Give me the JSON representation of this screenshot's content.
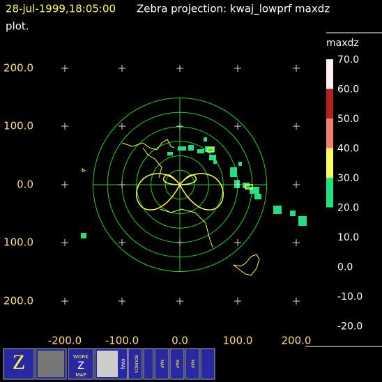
{
  "header": {
    "time": "28-jul-1999,18:05:00",
    "title": "Zebra projection: kwaj_lowprf maxdz",
    "title_cont": "plot."
  },
  "axes": {
    "x_labels": [
      "-200.0",
      "-100.0",
      "0.0",
      "100.0",
      "200.0"
    ],
    "y_labels": [
      "200.0",
      "100.0",
      "0.0",
      "100.0",
      "200.0"
    ]
  },
  "colorbar": {
    "title": "maxdz",
    "labels": [
      "70.0",
      "60.0",
      "50.0",
      "40.0",
      "30.0",
      "20.0",
      "10.0",
      "0.0",
      "-10.0",
      "-20.0"
    ],
    "colors": [
      "#fff0f0",
      "#b22222",
      "#f08070",
      "#ffff60",
      "#20e080"
    ]
  },
  "toolbar": {
    "icons": [
      "Z",
      "WORK",
      "Z",
      "MAP",
      "KWAJ",
      "BOUNDS",
      "MAP",
      "MAP",
      "MAP"
    ]
  }
}
